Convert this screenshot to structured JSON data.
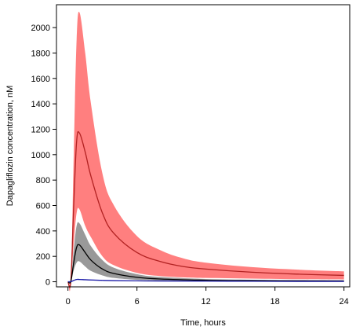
{
  "chart_data": {
    "type": "line",
    "title": "",
    "xlabel": "Time, hours",
    "ylabel": "Dapagliflozin concentration, nM",
    "xlim": [
      -1,
      24.5
    ],
    "ylim": [
      -40,
      2180
    ],
    "xticks": [
      0,
      6,
      12,
      18,
      24
    ],
    "yticks": [
      0,
      200,
      400,
      600,
      800,
      1000,
      1200,
      1400,
      1600,
      1800,
      2000
    ],
    "grid": false,
    "legend": "none",
    "series": [
      {
        "color": "#b22222",
        "band_color": "#ff7f7f",
        "x": [
          0,
          0.25,
          0.5,
          0.75,
          1,
          1.5,
          2,
          3,
          4,
          6,
          8,
          10,
          12,
          16,
          20,
          24
        ],
        "y": [
          0,
          5,
          600,
          1100,
          1170,
          1020,
          830,
          540,
          380,
          230,
          160,
          120,
          100,
          75,
          60,
          50
        ],
        "lower": [
          0,
          3,
          300,
          540,
          570,
          440,
          350,
          200,
          130,
          70,
          45,
          35,
          30,
          25,
          20,
          18
        ],
        "upper": [
          0,
          8,
          1000,
          1900,
          2120,
          1800,
          1400,
          850,
          600,
          360,
          250,
          185,
          150,
          115,
          95,
          82
        ]
      },
      {
        "color": "#000000",
        "band_color": "#999999",
        "x": [
          0,
          0.25,
          0.5,
          0.75,
          1,
          1.5,
          2,
          3,
          4,
          6,
          8,
          12,
          16,
          20,
          24
        ],
        "y": [
          0,
          3,
          150,
          270,
          290,
          230,
          170,
          100,
          65,
          35,
          22,
          12,
          9,
          7,
          6
        ],
        "lower": [
          0,
          2,
          90,
          150,
          160,
          120,
          85,
          50,
          30,
          15,
          10,
          5,
          4,
          3,
          3
        ],
        "upper": [
          0,
          5,
          250,
          440,
          460,
          370,
          280,
          170,
          110,
          60,
          38,
          22,
          16,
          13,
          11
        ]
      },
      {
        "color": "#1a1aa6",
        "band_color": "#8080ff",
        "x": [
          0,
          0.25,
          0.5,
          0.75,
          1,
          1.5,
          2,
          3,
          4,
          6,
          8,
          12,
          16,
          20,
          24
        ],
        "y": [
          0,
          1,
          10,
          18,
          18,
          16,
          14,
          11,
          9,
          7,
          6,
          5,
          4,
          3,
          3
        ],
        "lower": [
          0,
          1,
          8,
          15,
          15,
          13,
          11,
          9,
          7,
          6,
          5,
          4,
          3,
          2,
          2
        ],
        "upper": [
          0,
          2,
          12,
          21,
          22,
          19,
          17,
          13,
          11,
          9,
          7,
          6,
          5,
          4,
          4
        ]
      }
    ]
  }
}
